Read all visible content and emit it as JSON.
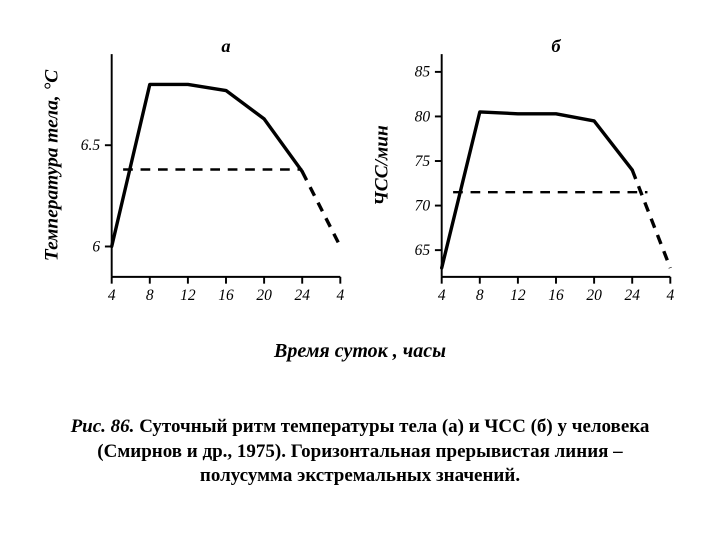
{
  "figure": {
    "xaxis_label": "Время суток , часы",
    "caption_lead": "Рис. 86.",
    "caption_rest": " Суточный  ритм  температуры тела (а) и  ЧСС (б)  у человека (Смирнов и др., 1975).  Горизонтальная  прерывистая  линия – полусумма  экстремальных  значений.",
    "background_color": "#ffffff",
    "axis_color": "#000000",
    "line_color": "#000000",
    "line_width": 3.5,
    "dash_pattern": "10,8",
    "tick_fontsize": 16,
    "label_fontsize": 20,
    "panel_fontsize": 19
  },
  "panel_a": {
    "panel_label": "а",
    "ylabel": "Температура тела, °С",
    "type": "line",
    "x_ticks": [
      4,
      8,
      12,
      16,
      20,
      24,
      4
    ],
    "x_positions": [
      0,
      1,
      2,
      3,
      4,
      5,
      6
    ],
    "y_ticks": [
      6.0,
      6.5
    ],
    "ylim": [
      5.85,
      6.95
    ],
    "solid_series": {
      "x": [
        0,
        1,
        2,
        3,
        4,
        5
      ],
      "y": [
        6.0,
        6.8,
        6.8,
        6.77,
        6.63,
        6.37
      ]
    },
    "dash_series": {
      "x": [
        5,
        6
      ],
      "y": [
        6.37,
        6.0
      ]
    },
    "h_dash": {
      "y": 6.38,
      "x_from": 0.3,
      "x_to": 5.0
    }
  },
  "panel_b": {
    "panel_label": "б",
    "ylabel": "ЧСС/мин",
    "type": "line",
    "x_ticks": [
      4,
      8,
      12,
      16,
      20,
      24,
      4
    ],
    "x_positions": [
      0,
      1,
      2,
      3,
      4,
      5,
      6
    ],
    "y_ticks": [
      65,
      70,
      75,
      80,
      85
    ],
    "ylim": [
      62,
      87
    ],
    "solid_series": {
      "x": [
        0,
        1,
        2,
        3,
        4,
        5
      ],
      "y": [
        63,
        80.5,
        80.3,
        80.3,
        79.5,
        74
      ]
    },
    "dash_series": {
      "x": [
        5,
        6
      ],
      "y": [
        74,
        63
      ]
    },
    "h_dash": {
      "y": 71.5,
      "x_from": 0.3,
      "x_to": 5.4
    }
  }
}
